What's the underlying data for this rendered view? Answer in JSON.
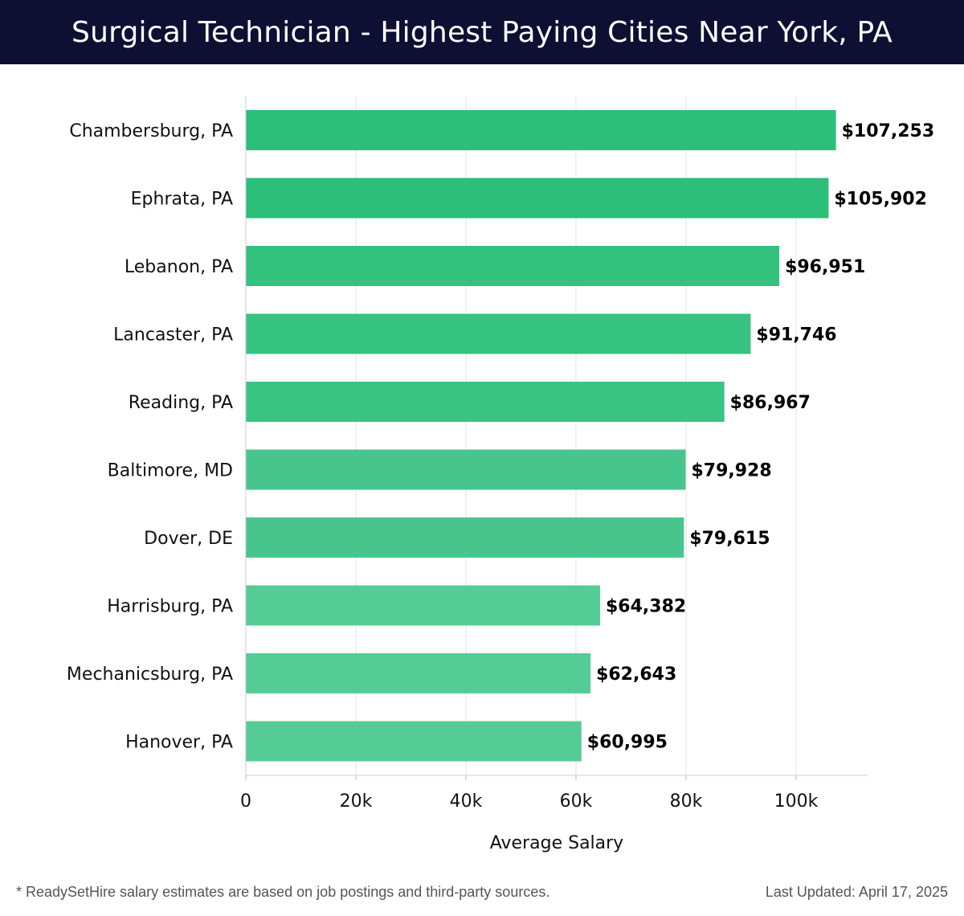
{
  "header": {
    "title": "Surgical Technician - Highest Paying Cities Near York, PA"
  },
  "chart_data": {
    "type": "bar",
    "orientation": "horizontal",
    "title": "Surgical Technician - Highest Paying Cities Near York, PA",
    "xlabel": "Average Salary",
    "ylabel": "",
    "categories": [
      "Chambersburg, PA",
      "Ephrata, PA",
      "Lebanon, PA",
      "Lancaster, PA",
      "Reading, PA",
      "Baltimore, MD",
      "Dover, DE",
      "Harrisburg, PA",
      "Mechanicsburg, PA",
      "Hanover, PA"
    ],
    "values": [
      107253,
      105902,
      96951,
      91746,
      86967,
      79928,
      79615,
      64382,
      62643,
      60995
    ],
    "value_labels": [
      "$107,253",
      "$105,902",
      "$96,951",
      "$91,746",
      "$86,967",
      "$79,928",
      "$79,615",
      "$64,382",
      "$62,643",
      "$60,995"
    ],
    "bar_colors": [
      "#2bbf7a",
      "#2bbf7a",
      "#32c27e",
      "#36c381",
      "#3ac484",
      "#47c58c",
      "#47c58c",
      "#55cc95",
      "#55cc95",
      "#55cc95"
    ],
    "xlim": [
      0,
      113000
    ],
    "xticks": [
      0,
      20000,
      40000,
      60000,
      80000,
      100000
    ],
    "xtick_labels": [
      "0",
      "20k",
      "40k",
      "60k",
      "80k",
      "100k"
    ],
    "grid": true
  },
  "footer": {
    "note": "* ReadySetHire salary estimates are based on job postings and third-party sources.",
    "updated": "Last Updated: April 17, 2025"
  }
}
